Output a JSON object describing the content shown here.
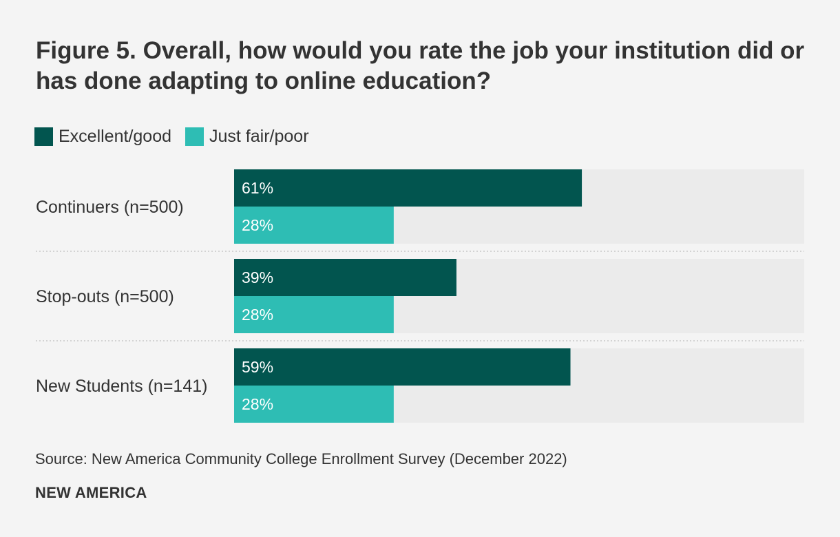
{
  "chart_data": {
    "type": "bar",
    "orientation": "horizontal",
    "title": "Figure 5. Overall, how would you rate the job your institution did or has done adapting to online education?",
    "categories": [
      "Continuers (n=500)",
      "Stop-outs (n=500)",
      "New Students (n=141)"
    ],
    "series": [
      {
        "name": "Excellent/good",
        "color": "#02554f",
        "values": [
          61,
          39,
          59
        ]
      },
      {
        "name": "Just fair/poor",
        "color": "#2ebdb4",
        "values": [
          28,
          28,
          28
        ]
      }
    ],
    "value_suffix": "%",
    "xlim": [
      0,
      100
    ],
    "track_color": "#ebebeb",
    "legend_position": "top-left",
    "grid": false,
    "xlabel": "",
    "ylabel": ""
  },
  "source": "Source: New America Community College Enrollment Survey (December 2022)",
  "brand": "NEW AMERICA"
}
